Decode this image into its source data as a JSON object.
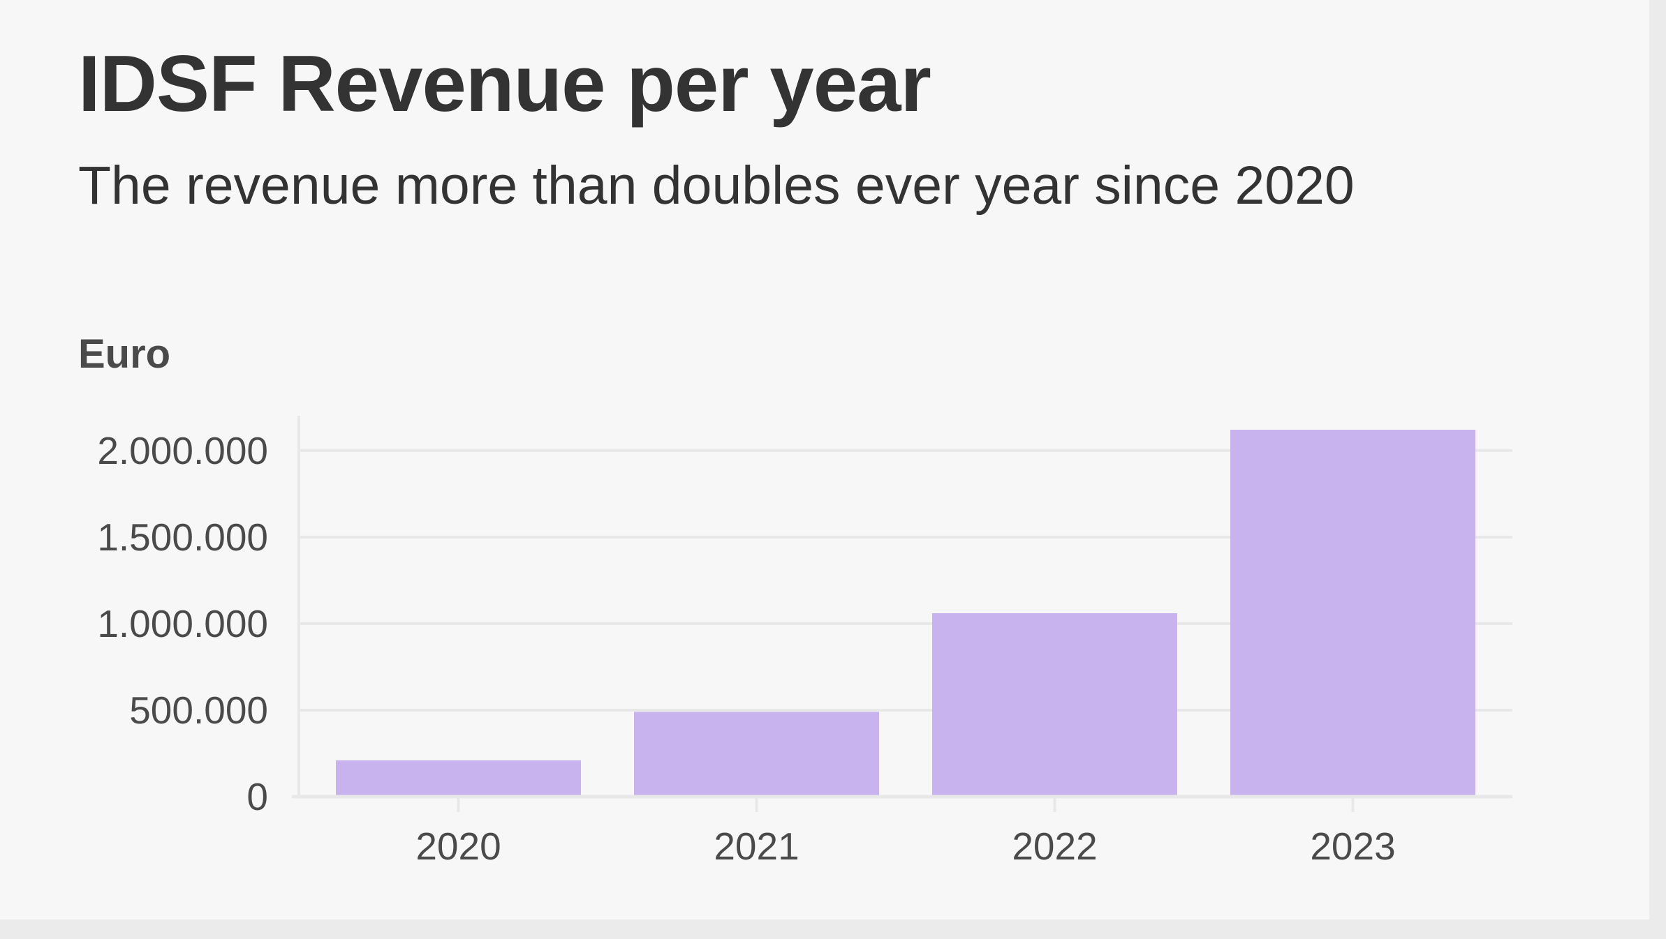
{
  "title": "IDSF Revenue per year",
  "subtitle": "The revenue more than doubles ever year since 2020",
  "chart_data": {
    "type": "bar",
    "title": "IDSF Revenue per year",
    "subtitle": "The revenue more than doubles ever year since 2020",
    "xlabel": "",
    "ylabel": "Euro",
    "categories": [
      "2020",
      "2021",
      "2022",
      "2023"
    ],
    "values": [
      210000,
      490000,
      1060000,
      2120000
    ],
    "ylim": [
      0,
      2120000
    ],
    "yticks": [
      0,
      500000,
      1000000,
      1500000,
      2000000
    ],
    "ytick_labels": [
      "0",
      "500.000",
      "1.000.000",
      "1.500.000",
      "2.000.000"
    ],
    "grid": true,
    "colors": {
      "bar": "#c9b3ef",
      "grid": "#e8e8e8",
      "text": "#333333"
    }
  }
}
